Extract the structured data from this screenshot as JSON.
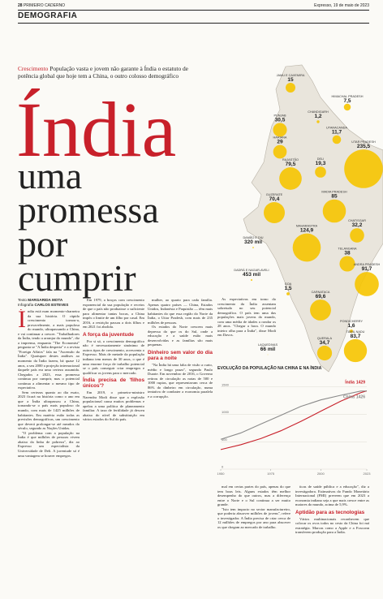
{
  "header": {
    "page": "28",
    "section": "PRIMEIRO CADERNO",
    "date": "Expresso, 19 de maio de 2023"
  },
  "rubric": "DEMOGRAFIA",
  "intro": {
    "kicker": "Crescimento",
    "text": "População vasta e jovem não garante à Índia o estatuto de potência global que hoje tem a China, o outro colosso demográfico"
  },
  "title": {
    "word": "Índia",
    "lines": [
      "uma",
      "promessa",
      "por",
      "cumprir"
    ]
  },
  "byline": {
    "text_label": "Texto",
    "author": "MARGARIDA MOTA",
    "graphics_label": "Infografia",
    "designer": "CARLOS ESTEVES"
  },
  "body": {
    "columns": [
      [
        {
          "p": "Índia está num momento-charneira da sua história. O rápido crescimento tornou-a, provavelmente, a mais populosa do mundo, ultrapassando a China, e vai continuar a crescer. \"Trabalhadores da Índia, tendo a arranjar do mundo\", diz a imprensa, enquanto \"The Economist\" pergunta se \"A Índia desperta\" e a revista \"Foreign Affairs\" fala na \"Ascensão da Índia\". Quaisquer destes análises ao momento da Índia fazem, há quase 12 anos, a seu 2000 a projeção internacional daquele país era uma certeza assumida. Chegados a 2023, essa promessa continua por cumprir, mas o potencial continua a alimentar o mesmo tipo de expectativa."
        },
        {
          "p": "Sem certezas quanto ao dia exato, 2023 ficará na história como o ano em que a Índia ultrapassou a China, tornando-se o país mais populoso do mundo, com mais de 1425 milhões de habitantes. Em matéria estão todas as previsões demográficas, um crescimento que deverá prolongar-se até meados do século, segundo as Nações Unidas."
        },
        {
          "p": "\"O problema com a população na Índia é que milhões de pessoas vivem abaixo da linha de pobreza\", diz ao Expresso um especialista da Universidade de Deli. A juventude só é uma vantagem se houver empregos."
        }
      ],
      [
        {
          "p": "Em 1979, a braços com crescimento exponencial da sua população e receios de que o país não produzisse o suficiente para alimentar tantas bocas, a China impôs o limite de um filho por casal. Em 2016, a restrição passou a dois filhos e em 2021 foi abolida."
        },
        {
          "h": "A força da juventude"
        },
        {
          "p": "Por si só, o crescimento demográfico não é necessariamente sinónimo de outros tipos de crescimento, acrescenta o Expresso. Mais de metade da população indiana tem menos de 30 anos, o que é uma enorme força de trabalho potencial se o país conseguir criar empregos e qualificar os jovens para o mercado."
        },
        {
          "h": "Índia precisa de 'filhos únicos'?"
        },
        {
          "p": "Em 2019, o primeiro-ministro Narendra Modi disse que a explosão populacional causa muitos problemas e apelou a uma política de planeamento familiar. A taxa de fertilidade já desceu abaixo do nível de substituição em vários estados do Sul do país."
        }
      ],
      [
        {
          "p": "mulher, ao quarto para cada família. Apenas quatro países — China, Estados Unidos, Indonésia e Paquistão — têm mais habitantes do que essa região do Norte da Índia, o Uttar Pradesh, com mais de 235 milhões de pessoas."
        },
        {
          "p": "Os estados do Norte crescem mais depressa do que os do Sul, onde a educação e a saúde estão mais desenvolvidas e as famílias são mais pequenas."
        },
        {
          "h": "Dinheiro sem valor do dia para a noite"
        },
        {
          "p": "\"Na Índia há uma falta de visão a curto, médio e longo prazo\", segundo Paulo Duarte. Em novembro de 2016, o Governo retirou de circulação as notas de 500 e 1000 rupias, que representavam cerca de 86% do dinheiro em circulação, numa tentativa de combater a economia paralela e a corrupção."
        }
      ],
      [
        {
          "p": "As expectativas em torno do crescimento da Índia assentam sobretudo no seu potencial demográfico. O país tem uma das populações mais jovens do mundo, com uma média de idades a rondar os 28 anos. \"Chegar a hora. O mundo inteiro olha para a Índia\", disse Modi em Davos."
        }
      ],
      [
        {
          "p": "mal em certas partes do país, apenas do que tem boas leis. Alguns estados têm melhor desempenho do que outros, mas a diferença entre o Norte e o Sul continua a ser muito grande."
        },
        {
          "p": "\"Isto tem impacto no sector manufactureiro, que poderia absorver milhões de jovens\", refere o investigador. A Índia precisa de criar cerca de 12 milhões de empregos por ano para absorver os que chegam ao mercado de trabalho."
        }
      ],
      [
        {
          "p": "ticas de saúde pública e a educação\", diz a investigadora. Estimativas do Fundo Monetário Internacional (FMI) preveem que em 2023 a economia indiana seja a que mais cresce entre as maiores do mundo, acima de 5,9%."
        },
        {
          "h": "Aptidão para as tecnologias"
        },
        {
          "p": "Vários multinacionais reconhecem que colocar os ovos todos no cesto da China foi má estratégia. Marcas como a Apple e a Foxconn transferem produção para a Índia."
        }
      ]
    ]
  },
  "map": {
    "states": [
      {
        "name": "JAMU E CAXEMIRA",
        "value": 15,
        "label": "15"
      },
      {
        "name": "HIMACHAL PRADESH",
        "value": 7.5,
        "label": "7,5"
      },
      {
        "name": "PUNJAB",
        "value": 30.5,
        "label": "30,5"
      },
      {
        "name": "CHANDIGARH",
        "value": 1.2,
        "label": "1,2"
      },
      {
        "name": "UTARACANDA",
        "value": 11.7,
        "label": "11,7"
      },
      {
        "name": "HARIANA",
        "value": 29,
        "label": "29"
      },
      {
        "name": "RAJASTÃO",
        "value": 79.5,
        "label": "79,5"
      },
      {
        "name": "DELI",
        "value": 19.3,
        "label": "19,3"
      },
      {
        "name": "UTAR PRADESH",
        "value": 235.5,
        "label": "235,5"
      },
      {
        "name": "GUZERATE",
        "value": 70.4,
        "label": "70,4"
      },
      {
        "name": "MADIA PRADESH",
        "value": 85,
        "label": "85"
      },
      {
        "name": "CHATISGAR",
        "value": 32.2,
        "label": "32,2"
      },
      {
        "name": "DAMÃO E DIU",
        "value": 0.32,
        "label": "320 mil"
      },
      {
        "name": "MAHARASTRA",
        "value": 124.9,
        "label": "124,9"
      },
      {
        "name": "DADRÁ E NAGAR-AVELI",
        "value": 0.453,
        "label": "453 mil"
      },
      {
        "name": "TELANGANA",
        "value": 38,
        "label": "38"
      },
      {
        "name": "ANDRA PRADESH",
        "value": 91.7,
        "label": "91,7"
      },
      {
        "name": "GOA",
        "value": 1.5,
        "label": "1,5"
      },
      {
        "name": "CARNATACA",
        "value": 69.6,
        "label": "69,6"
      },
      {
        "name": "PONDICHERRY",
        "value": 1.6,
        "label": "1,6"
      },
      {
        "name": "QUERALA",
        "value": 34.7,
        "label": "34,7"
      },
      {
        "name": "TÂMIL NADU",
        "value": 83.7,
        "label": "83,7"
      },
      {
        "name": "LAQUEDIVAS",
        "value": 0.066,
        "label": "66 mil"
      }
    ]
  },
  "chart": {
    "type": "line",
    "title": "EVOLUÇÃO DA POPULAÇÃO NA CHINA E NA ÍNDIA",
    "x": [
      1950,
      1960,
      1970,
      1980,
      1990,
      2000,
      2010,
      2020,
      2023
    ],
    "xlim": [
      1950,
      2023
    ],
    "xticks": [
      1950,
      1975,
      2000,
      2023
    ],
    "ylim": [
      0,
      1600
    ],
    "yticks": [
      0,
      500,
      1000,
      1500
    ],
    "series": [
      {
        "name": "Índia",
        "color": "#c8202a",
        "values": [
          357,
          445,
          557,
          699,
          870,
          1057,
          1241,
          1396,
          1429
        ],
        "end_label": "1429"
      },
      {
        "name": "China",
        "color": "#8a8a8a",
        "values": [
          544,
          660,
          822,
          982,
          1144,
          1264,
          1348,
          1425,
          1426
        ],
        "end_label": "1426"
      }
    ]
  }
}
